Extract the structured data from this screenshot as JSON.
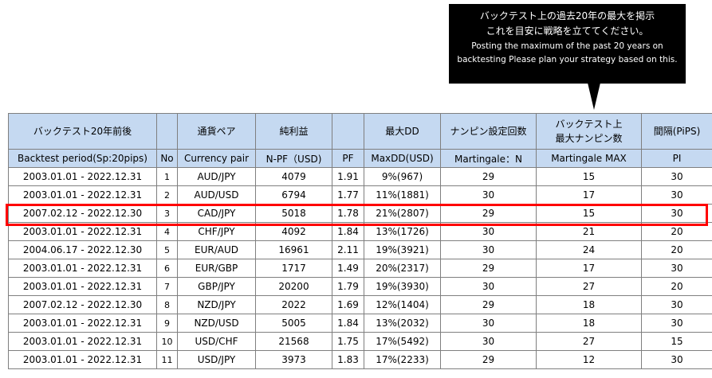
{
  "callout": {
    "jp_line1": "バックテスト上の過去20年の最大を掲示",
    "jp_line2": "これを目安に戦略を立ててください。",
    "en_line1": "Posting the maximum of the past 20 years on",
    "en_line2": "backtesting Please plan your strategy based on this."
  },
  "table": {
    "header_jp": [
      "バックテスト20年前後",
      "",
      "通貨ペア",
      "純利益",
      "",
      "最大DD",
      "ナンピン設定回数",
      "バックテスト上",
      "間隔(PiPS)"
    ],
    "header_jp_line2": "最大ナンピン数",
    "header_en": [
      "Backtest period(Sp:20pips)",
      "No",
      "Currency pair",
      "N-PF（USD)",
      "PF",
      "MaxDD(USD)",
      "Martingale：N",
      "Martingale MAX",
      "PI"
    ],
    "rows": [
      {
        "period": "2003.01.01 - 2022.12.31",
        "no": "1",
        "pair": "AUD/JPY",
        "npf": "4079",
        "pf": "1.91",
        "maxdd": "9%(967)",
        "n": "29",
        "max": "15",
        "pi": "30"
      },
      {
        "period": "2003.01.01 - 2022.12.31",
        "no": "2",
        "pair": "AUD/USD",
        "npf": "6794",
        "pf": "1.77",
        "maxdd": "11%(1881)",
        "n": "30",
        "max": "17",
        "pi": "30"
      },
      {
        "period": "2007.02.12 - 2022.12.30",
        "no": "3",
        "pair": "CAD/JPY",
        "npf": "5018",
        "pf": "1.78",
        "maxdd": "21%(2807)",
        "n": "29",
        "max": "15",
        "pi": "30"
      },
      {
        "period": "2003.01.01 - 2022.12.31",
        "no": "4",
        "pair": "CHF/JPY",
        "npf": "4092",
        "pf": "1.84",
        "maxdd": "13%(1726)",
        "n": "30",
        "max": "21",
        "pi": "20"
      },
      {
        "period": "2004.06.17 - 2022.12.30",
        "no": "5",
        "pair": "EUR/AUD",
        "npf": "16961",
        "pf": "2.11",
        "maxdd": "19%(3921)",
        "n": "30",
        "max": "24",
        "pi": "20"
      },
      {
        "period": "2003.01.01 - 2022.12.31",
        "no": "6",
        "pair": "EUR/GBP",
        "npf": "1717",
        "pf": "1.49",
        "maxdd": "20%(2317)",
        "n": "29",
        "max": "17",
        "pi": "30"
      },
      {
        "period": "2003.01.01 - 2022.12.31",
        "no": "7",
        "pair": "GBP/JPY",
        "npf": "20200",
        "pf": "1.79",
        "maxdd": "19%(3930)",
        "n": "30",
        "max": "27",
        "pi": "20"
      },
      {
        "period": "2007.02.12 - 2022.12.30",
        "no": "8",
        "pair": "NZD/JPY",
        "npf": "2022",
        "pf": "1.69",
        "maxdd": "12%(1404)",
        "n": "29",
        "max": "18",
        "pi": "30"
      },
      {
        "period": "2003.01.01 - 2022.12.31",
        "no": "9",
        "pair": "NZD/USD",
        "npf": "5005",
        "pf": "1.84",
        "maxdd": "13%(2032)",
        "n": "30",
        "max": "18",
        "pi": "30"
      },
      {
        "period": "2003.01.01 - 2022.12.31",
        "no": "10",
        "pair": "USD/CHF",
        "npf": "21568",
        "pf": "1.75",
        "maxdd": "17%(5492)",
        "n": "30",
        "max": "27",
        "pi": "15"
      },
      {
        "period": "2003.01.01 - 2022.12.31",
        "no": "11",
        "pair": "USD/JPY",
        "npf": "3973",
        "pf": "1.83",
        "maxdd": "17%(2233)",
        "n": "29",
        "max": "12",
        "pi": "30"
      }
    ]
  },
  "highlight_color": "#ff0000",
  "header_bg": "#c5d9f1"
}
